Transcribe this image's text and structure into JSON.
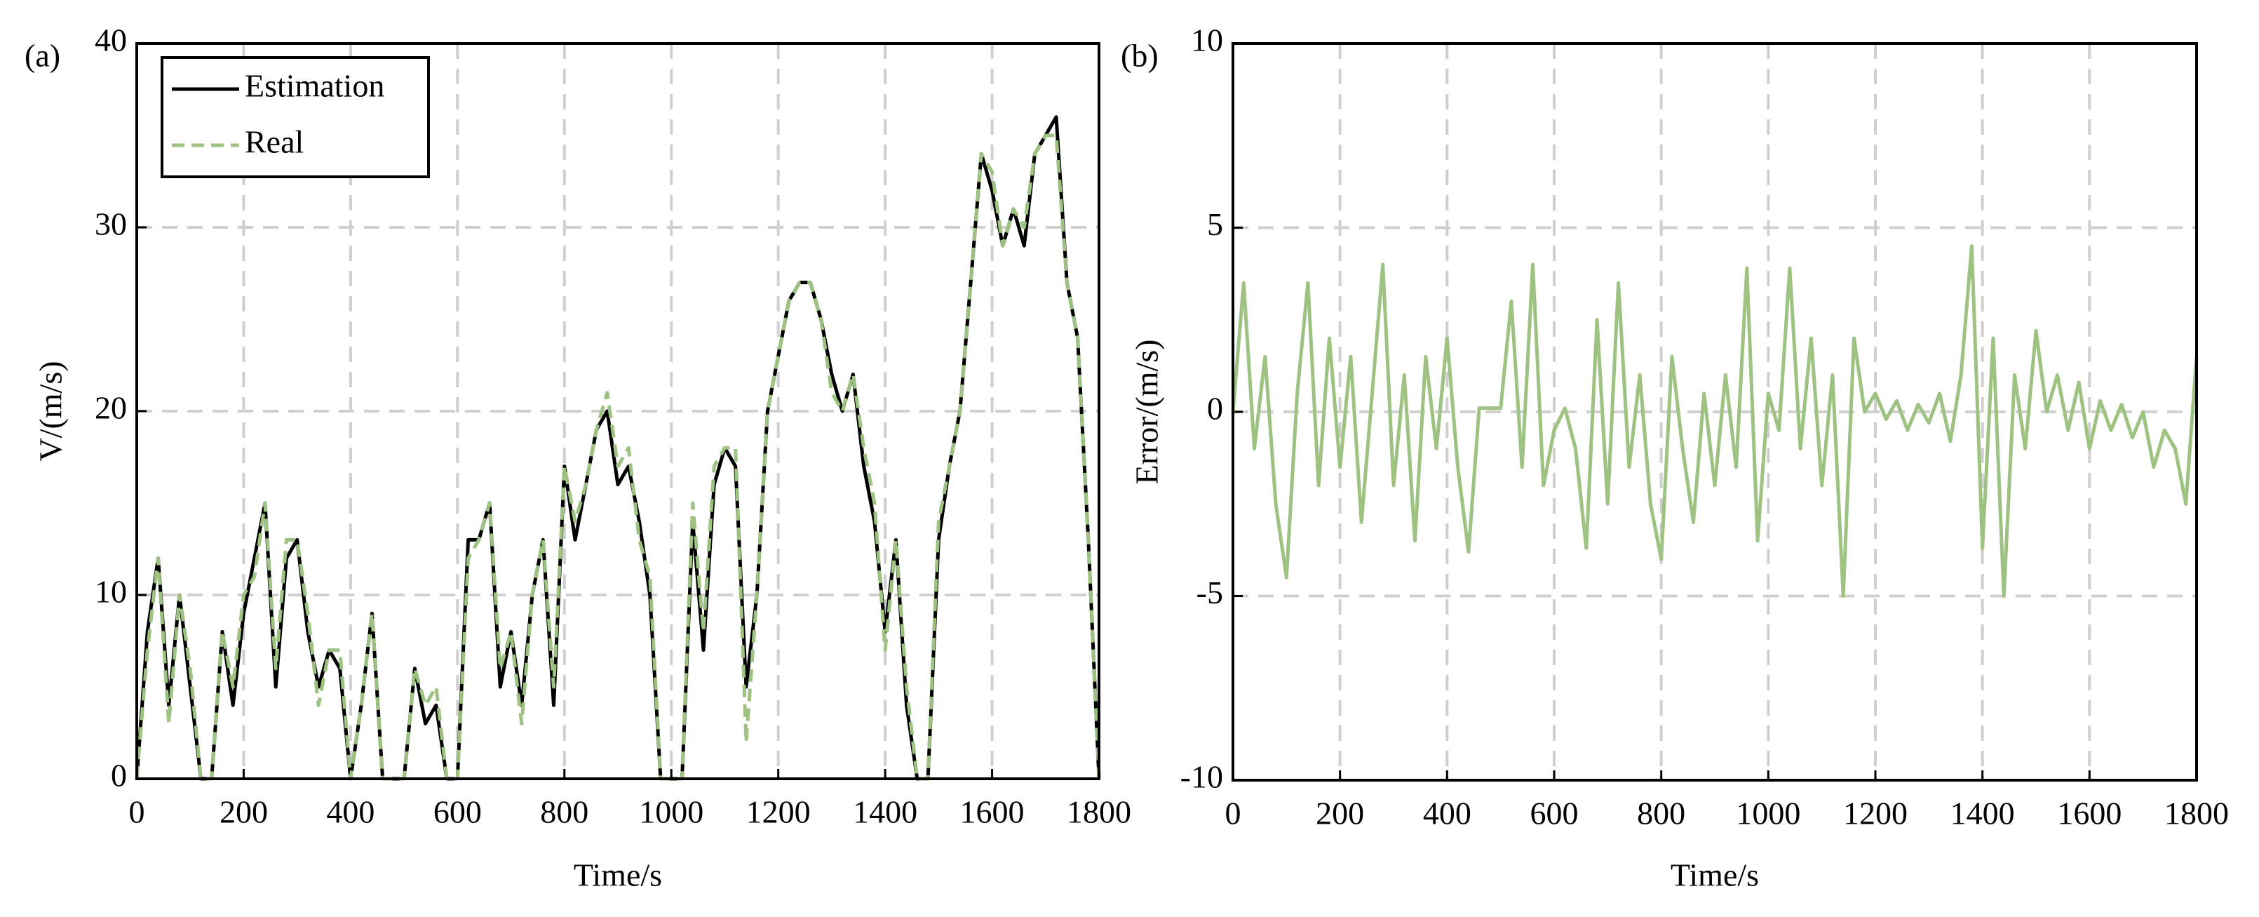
{
  "chart_data": [
    {
      "type": "line",
      "title": "(a)",
      "xlabel": "Time/s",
      "ylabel": "V/(m/s)",
      "x": [
        0,
        20,
        40,
        60,
        80,
        100,
        120,
        140,
        160,
        180,
        200,
        220,
        240,
        260,
        280,
        300,
        320,
        340,
        360,
        380,
        400,
        420,
        440,
        460,
        480,
        500,
        520,
        540,
        560,
        580,
        600,
        620,
        640,
        660,
        680,
        700,
        720,
        740,
        760,
        780,
        800,
        820,
        840,
        860,
        880,
        900,
        920,
        940,
        960,
        980,
        1000,
        1020,
        1040,
        1060,
        1080,
        1100,
        1120,
        1140,
        1160,
        1180,
        1200,
        1220,
        1240,
        1260,
        1280,
        1300,
        1320,
        1340,
        1360,
        1380,
        1400,
        1420,
        1440,
        1460,
        1480,
        1500,
        1520,
        1540,
        1560,
        1580,
        1600,
        1620,
        1640,
        1660,
        1680,
        1700,
        1720,
        1740,
        1760,
        1780,
        1800
      ],
      "series": [
        {
          "name": "Estimation",
          "color": "#000000",
          "style": "solid",
          "values": [
            0,
            8,
            12,
            4,
            10,
            5,
            0,
            0,
            8,
            4,
            9,
            12,
            15,
            5,
            12,
            13,
            8,
            5,
            7,
            6,
            0,
            4,
            9,
            0,
            0,
            0,
            6,
            3,
            4,
            0,
            0,
            13,
            13,
            15,
            5,
            8,
            4,
            10,
            13,
            4,
            17,
            13,
            16,
            19,
            20,
            16,
            17,
            14,
            10,
            0,
            0,
            0,
            14,
            7,
            16,
            18,
            17,
            5,
            10,
            20,
            23,
            26,
            27,
            27,
            25,
            22,
            20,
            22,
            17,
            14,
            8,
            13,
            4,
            0,
            0,
            13,
            17,
            20,
            27,
            34,
            32,
            29,
            31,
            29,
            34,
            35,
            36,
            27,
            24,
            13,
            0
          ]
        },
        {
          "name": "Real",
          "color": "#9dc281",
          "style": "dashed",
          "values": [
            0,
            7,
            12,
            3,
            10,
            6,
            0,
            0,
            8,
            5,
            10,
            11,
            15,
            6,
            13,
            13,
            9,
            4,
            7,
            7,
            0,
            4,
            9,
            0,
            0,
            0,
            6,
            4,
            5,
            0,
            0,
            12,
            13,
            15,
            6,
            8,
            3,
            10,
            13,
            5,
            17,
            14,
            16,
            19,
            21,
            17,
            18,
            13,
            11,
            0,
            0,
            0,
            15,
            8,
            17,
            18,
            18,
            2,
            10,
            20,
            23,
            26,
            27,
            27,
            25,
            21,
            20,
            22,
            18,
            15,
            7,
            13,
            5,
            0,
            0,
            14,
            17,
            20,
            27,
            34,
            33,
            29,
            31,
            30,
            34,
            35,
            35,
            27,
            24,
            13,
            0
          ]
        }
      ],
      "xlim": [
        0,
        1800
      ],
      "xticks": [
        0,
        200,
        400,
        600,
        800,
        1000,
        1200,
        1400,
        1600,
        1800
      ],
      "ylim": [
        0,
        40
      ],
      "yticks": [
        0,
        10,
        20,
        30,
        40
      ],
      "grid": true,
      "legend": "upper left"
    },
    {
      "type": "line",
      "title": "(b)",
      "xlabel": "Time/s",
      "ylabel": "Error/(m/s)",
      "x": [
        0,
        20,
        40,
        60,
        80,
        100,
        120,
        140,
        160,
        180,
        200,
        220,
        240,
        260,
        280,
        300,
        320,
        340,
        360,
        380,
        400,
        420,
        440,
        460,
        480,
        500,
        520,
        540,
        560,
        580,
        600,
        620,
        640,
        660,
        680,
        700,
        720,
        740,
        760,
        780,
        800,
        820,
        840,
        860,
        880,
        900,
        920,
        940,
        960,
        980,
        1000,
        1020,
        1040,
        1060,
        1080,
        1100,
        1120,
        1140,
        1160,
        1180,
        1200,
        1220,
        1240,
        1260,
        1280,
        1300,
        1320,
        1340,
        1360,
        1380,
        1400,
        1420,
        1440,
        1460,
        1480,
        1500,
        1520,
        1540,
        1560,
        1580,
        1600,
        1620,
        1640,
        1660,
        1680,
        1700,
        1720,
        1740,
        1760,
        1780,
        1800
      ],
      "series": [
        {
          "name": "Error",
          "color": "#9dc281",
          "style": "solid",
          "values": [
            0,
            3.5,
            -1,
            1.5,
            -2.5,
            -4.5,
            0.5,
            3.5,
            -2,
            2,
            -1.5,
            1.5,
            -3,
            0.5,
            4,
            -2,
            1,
            -3.5,
            1.5,
            -1,
            2,
            -1.5,
            -3.8,
            0.1,
            0.1,
            0.1,
            3,
            -1.5,
            4,
            -2,
            -0.5,
            0.1,
            -1,
            -3.7,
            2.5,
            -2.5,
            3.5,
            -1.5,
            1,
            -2.5,
            -4,
            1.5,
            -1,
            -3,
            0.5,
            -2,
            1,
            -1.5,
            3.9,
            -3.5,
            0.5,
            -0.5,
            3.9,
            -1,
            2,
            -2,
            1,
            -5,
            2,
            0,
            0.5,
            -0.2,
            0.3,
            -0.5,
            0.2,
            -0.3,
            0.5,
            -0.8,
            1,
            4.5,
            -3.7,
            2,
            -5,
            1,
            -1,
            2.2,
            0,
            1,
            -0.5,
            0.8,
            -1,
            0.3,
            -0.5,
            0.2,
            -0.7,
            0,
            -1.5,
            -0.5,
            -1,
            -2.5,
            1.5
          ]
        }
      ],
      "xlim": [
        0,
        1800
      ],
      "xticks": [
        0,
        200,
        400,
        600,
        800,
        1000,
        1200,
        1400,
        1600,
        1800
      ],
      "ylim": [
        -10,
        10
      ],
      "yticks": [
        -10,
        -5,
        0,
        5,
        10
      ],
      "grid": true
    }
  ]
}
